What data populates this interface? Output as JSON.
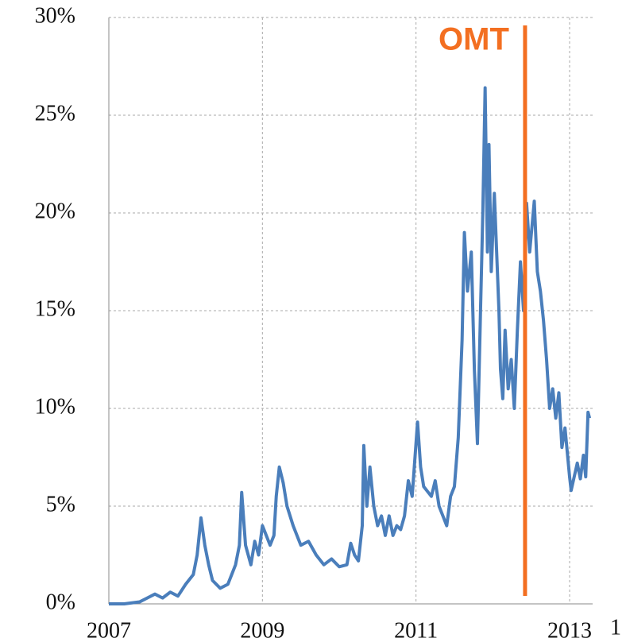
{
  "chart_data": {
    "type": "line",
    "x": [
      2007.0,
      2007.2,
      2007.4,
      2007.5,
      2007.6,
      2007.7,
      2007.8,
      2007.9,
      2008.0,
      2008.1,
      2008.15,
      2008.2,
      2008.25,
      2008.3,
      2008.35,
      2008.45,
      2008.55,
      2008.6,
      2008.65,
      2008.7,
      2008.73,
      2008.78,
      2008.85,
      2008.9,
      2008.95,
      2009.0,
      2009.05,
      2009.1,
      2009.15,
      2009.18,
      2009.22,
      2009.27,
      2009.32,
      2009.4,
      2009.5,
      2009.6,
      2009.7,
      2009.8,
      2009.9,
      2010.0,
      2010.1,
      2010.15,
      2010.2,
      2010.25,
      2010.3,
      2010.32,
      2010.36,
      2010.4,
      2010.45,
      2010.5,
      2010.55,
      2010.6,
      2010.65,
      2010.7,
      2010.75,
      2010.8,
      2010.85,
      2010.9,
      2010.95,
      2011.02,
      2011.06,
      2011.1,
      2011.2,
      2011.25,
      2011.3,
      2011.35,
      2011.4,
      2011.45,
      2011.5,
      2011.55,
      2011.6,
      2011.63,
      2011.67,
      2011.72,
      2011.76,
      2011.8,
      2011.84,
      2011.87,
      2011.9,
      2011.93,
      2011.95,
      2011.98,
      2012.02,
      2012.05,
      2012.08,
      2012.1,
      2012.13,
      2012.16,
      2012.2,
      2012.24,
      2012.28,
      2012.32,
      2012.36,
      2012.4,
      2012.44,
      2012.48,
      2012.54,
      2012.58,
      2012.62,
      2012.66,
      2012.7,
      2012.74,
      2012.78,
      2012.82,
      2012.86,
      2012.9,
      2012.94,
      2013.0,
      2013.02,
      2013.06,
      2013.1,
      2013.14,
      2013.18,
      2013.21,
      2013.24,
      2013.26
    ],
    "series": [
      {
        "color": "#4a7ebb",
        "values": [
          0,
          0,
          0.1,
          0.3,
          0.5,
          0.3,
          0.6,
          0.4,
          1.0,
          1.5,
          2.5,
          4.4,
          3.0,
          2.0,
          1.2,
          0.8,
          1.0,
          1.5,
          2.0,
          3.0,
          5.7,
          3.0,
          2.0,
          3.2,
          2.5,
          4.0,
          3.5,
          3.0,
          3.5,
          5.5,
          7.0,
          6.2,
          5.0,
          4.0,
          3.0,
          3.2,
          2.5,
          2.0,
          2.3,
          1.9,
          2.0,
          3.1,
          2.5,
          2.2,
          4.0,
          8.1,
          5.0,
          7.0,
          5.0,
          4.0,
          4.5,
          3.5,
          4.5,
          3.5,
          4.0,
          3.8,
          4.5,
          6.3,
          5.5,
          9.3,
          7.0,
          6.0,
          5.5,
          6.3,
          5.0,
          4.5,
          4.0,
          5.5,
          6.0,
          8.5,
          13.5,
          19.0,
          16.0,
          18.0,
          12.0,
          8.2,
          15.0,
          20.0,
          26.4,
          18.0,
          23.5,
          17.0,
          21.0,
          18.0,
          15.0,
          12.0,
          10.5,
          14.0,
          11.0,
          12.5,
          10.0,
          14.0,
          17.5,
          15.0,
          20.5,
          18.0,
          20.6,
          17.0,
          16.0,
          14.5,
          12.5,
          10.0,
          11.0,
          9.5,
          10.8,
          8.0,
          9.0,
          6.5,
          5.8,
          6.5,
          7.2,
          6.4,
          7.6,
          6.5,
          9.8,
          9.5
        ]
      }
    ],
    "xlim": [
      2007,
      2013.3
    ],
    "xticks": [
      2007,
      2009,
      2011,
      2013
    ],
    "ylim": [
      0,
      30
    ],
    "yticks": [
      {
        "value": 0,
        "label": "0%"
      },
      {
        "value": 5,
        "label": "5%"
      },
      {
        "value": 10,
        "label": "10%"
      },
      {
        "value": 15,
        "label": "15%"
      },
      {
        "value": 20,
        "label": "20%"
      },
      {
        "value": 25,
        "label": "25%"
      },
      {
        "value": 30,
        "label": "30%"
      }
    ],
    "grid": true,
    "annotations": [
      {
        "text": "OMT",
        "x": 2012.42,
        "color": "#f36f21"
      }
    ],
    "x_axis_note": "1"
  }
}
